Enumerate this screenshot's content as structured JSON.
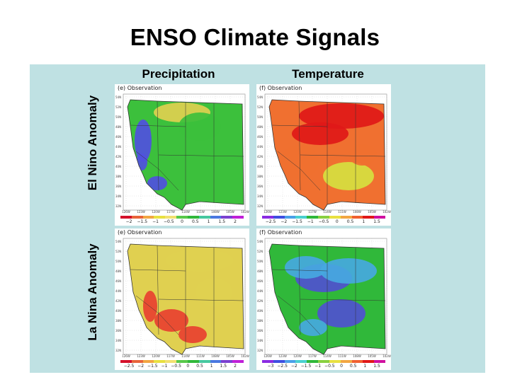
{
  "title": "ENSO Climate Signals",
  "columns": [
    "Precipitation",
    "Temperature"
  ],
  "rows": [
    "El Nino Anomaly",
    "La Nina Anomaly"
  ],
  "lat_labels": [
    "54N",
    "52N",
    "50N",
    "48N",
    "46N",
    "44N",
    "42N",
    "40N",
    "38N",
    "36N",
    "34N",
    "32N"
  ],
  "lon_labels": [
    "126W",
    "123W",
    "120W",
    "117W",
    "114W",
    "111W",
    "108W",
    "105W",
    "102W"
  ],
  "maps": [
    {
      "caption": "(e) Observation",
      "colorbar_colors": [
        "#d4102a",
        "#e8643a",
        "#f2a642",
        "#e8e040",
        "#f2e070",
        "#58c84a",
        "#30b83a",
        "#46c8a0",
        "#4a78e0",
        "#7a40d0",
        "#c020d8"
      ],
      "colorbar_labels": [
        "−2",
        "−1.5",
        "−1",
        "−0.5",
        "0",
        "0.5",
        "1",
        "1.5",
        "2"
      ],
      "dominant": "#3cc03c",
      "secondary": "#e0d050",
      "accent": "#5050e0"
    },
    {
      "caption": "(f) Observation",
      "colorbar_colors": [
        "#8a2be2",
        "#3e4ee0",
        "#4aa0e8",
        "#4ad0d0",
        "#30b83a",
        "#88d040",
        "#e8e040",
        "#f2a642",
        "#f06030",
        "#e01818",
        "#d010a0"
      ],
      "colorbar_labels": [
        "−2.5",
        "−2",
        "−1.5",
        "−1",
        "−0.5",
        "0",
        "0.5",
        "1",
        "1.5"
      ],
      "dominant": "#f07030",
      "secondary": "#e01818",
      "accent": "#d6e040"
    },
    {
      "caption": "(e) Observation",
      "colorbar_colors": [
        "#d4102a",
        "#e8643a",
        "#f2a642",
        "#e8e040",
        "#f2e070",
        "#58c84a",
        "#30b83a",
        "#46c8a0",
        "#4a78e0",
        "#7a40d0",
        "#c020d8"
      ],
      "colorbar_labels": [
        "−2.5",
        "−2",
        "−1.5",
        "−1",
        "−0.5",
        "0",
        "0.5",
        "1",
        "1.5",
        "2"
      ],
      "dominant": "#e0d050",
      "secondary": "#3cc03c",
      "accent": "#e84030"
    },
    {
      "caption": "(f) Observation",
      "colorbar_colors": [
        "#8a2be2",
        "#3e4ee0",
        "#4aa0e8",
        "#4ad0d0",
        "#30b83a",
        "#88d040",
        "#e8e040",
        "#f2a642",
        "#f06030",
        "#e01818",
        "#d010a0"
      ],
      "colorbar_labels": [
        "−3",
        "−2.5",
        "−2",
        "−1.5",
        "−1",
        "−0.5",
        "0",
        "0.5",
        "1",
        "1.5"
      ],
      "dominant": "#30b83a",
      "secondary": "#46a8e0",
      "accent": "#5050d0"
    }
  ]
}
